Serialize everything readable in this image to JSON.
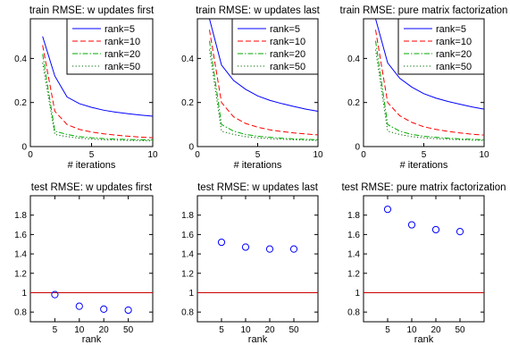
{
  "chart_data": [
    {
      "type": "line",
      "title": "train RMSE: w updates first",
      "xlabel": "# iterations",
      "ylabel": "",
      "xlim": [
        0,
        10
      ],
      "ylim": [
        0,
        0.58
      ],
      "xticks": [
        0,
        5,
        10
      ],
      "yticks": [
        0,
        0.2,
        0.4
      ],
      "x": [
        1,
        2,
        3,
        4,
        5,
        6,
        7,
        8,
        9,
        10
      ],
      "legend": "top-right",
      "series": [
        {
          "name": "rank=5",
          "style": "solid",
          "color": "#0000ff",
          "values": [
            0.5,
            0.32,
            0.225,
            0.195,
            0.178,
            0.165,
            0.156,
            0.149,
            0.143,
            0.138
          ]
        },
        {
          "name": "rank=10",
          "style": "dashed",
          "color": "#ff0000",
          "values": [
            0.46,
            0.16,
            0.1,
            0.078,
            0.066,
            0.058,
            0.052,
            0.047,
            0.043,
            0.04
          ]
        },
        {
          "name": "rank=20",
          "style": "dashdot",
          "color": "#00aa00",
          "values": [
            0.42,
            0.07,
            0.055,
            0.045,
            0.04,
            0.036,
            0.034,
            0.032,
            0.031,
            0.03
          ]
        },
        {
          "name": "rank=50",
          "style": "dotted",
          "color": "#006400",
          "values": [
            0.38,
            0.055,
            0.045,
            0.038,
            0.034,
            0.031,
            0.029,
            0.028,
            0.027,
            0.026
          ]
        }
      ]
    },
    {
      "type": "line",
      "title": "train RMSE: w updates last",
      "xlabel": "# iterations",
      "ylabel": "",
      "xlim": [
        0,
        10
      ],
      "ylim": [
        0,
        0.58
      ],
      "xticks": [
        0,
        5,
        10
      ],
      "yticks": [
        0,
        0.2,
        0.4
      ],
      "x": [
        1,
        2,
        3,
        4,
        5,
        6,
        7,
        8,
        9,
        10
      ],
      "legend": "top-right",
      "series": [
        {
          "name": "rank=5",
          "style": "solid",
          "color": "#0000ff",
          "values": [
            0.58,
            0.37,
            0.3,
            0.26,
            0.23,
            0.21,
            0.195,
            0.182,
            0.17,
            0.16
          ]
        },
        {
          "name": "rank=10",
          "style": "dashed",
          "color": "#ff0000",
          "values": [
            0.53,
            0.2,
            0.135,
            0.105,
            0.088,
            0.076,
            0.068,
            0.062,
            0.057,
            0.053
          ]
        },
        {
          "name": "rank=20",
          "style": "dashdot",
          "color": "#00aa00",
          "values": [
            0.48,
            0.1,
            0.07,
            0.055,
            0.047,
            0.042,
            0.038,
            0.035,
            0.033,
            0.031
          ]
        },
        {
          "name": "rank=50",
          "style": "dotted",
          "color": "#006400",
          "values": [
            0.44,
            0.07,
            0.055,
            0.045,
            0.04,
            0.036,
            0.033,
            0.031,
            0.029,
            0.028
          ]
        }
      ]
    },
    {
      "type": "line",
      "title": "train RMSE: pure matrix factorization",
      "xlabel": "# iterations",
      "ylabel": "",
      "xlim": [
        0,
        10
      ],
      "ylim": [
        0,
        0.58
      ],
      "xticks": [
        0,
        5,
        10
      ],
      "yticks": [
        0,
        0.2,
        0.4
      ],
      "x": [
        1,
        2,
        3,
        4,
        5,
        6,
        7,
        8,
        9,
        10
      ],
      "legend": "top-right",
      "series": [
        {
          "name": "rank=5",
          "style": "solid",
          "color": "#0000ff",
          "values": [
            0.58,
            0.38,
            0.31,
            0.27,
            0.24,
            0.22,
            0.205,
            0.192,
            0.18,
            0.17
          ]
        },
        {
          "name": "rank=10",
          "style": "dashed",
          "color": "#ff0000",
          "values": [
            0.53,
            0.2,
            0.14,
            0.11,
            0.09,
            0.078,
            0.069,
            0.062,
            0.056,
            0.052
          ]
        },
        {
          "name": "rank=20",
          "style": "dashdot",
          "color": "#00aa00",
          "values": [
            0.48,
            0.1,
            0.07,
            0.055,
            0.047,
            0.042,
            0.038,
            0.035,
            0.033,
            0.031
          ]
        },
        {
          "name": "rank=50",
          "style": "dotted",
          "color": "#006400",
          "values": [
            0.44,
            0.07,
            0.055,
            0.045,
            0.04,
            0.036,
            0.033,
            0.031,
            0.029,
            0.028
          ]
        }
      ]
    },
    {
      "type": "scatter",
      "title": "test RMSE: w updates first",
      "xlabel": "rank",
      "ylabel": "",
      "categories": [
        "5",
        "10",
        "20",
        "50"
      ],
      "ylim": [
        0.7,
        2.0
      ],
      "yticks": [
        0.8,
        1,
        1.2,
        1.4,
        1.6,
        1.8
      ],
      "values": [
        0.98,
        0.86,
        0.83,
        0.82
      ],
      "reference_line": 1.0,
      "marker_color": "#0000ff",
      "line_color": "#cc0000"
    },
    {
      "type": "scatter",
      "title": "test RMSE: w updates last",
      "xlabel": "rank",
      "ylabel": "",
      "categories": [
        "5",
        "10",
        "20",
        "50"
      ],
      "ylim": [
        0.7,
        2.0
      ],
      "yticks": [
        0.8,
        1,
        1.2,
        1.4,
        1.6,
        1.8
      ],
      "values": [
        1.52,
        1.47,
        1.45,
        1.45
      ],
      "reference_line": 1.0,
      "marker_color": "#0000ff",
      "line_color": "#cc0000"
    },
    {
      "type": "scatter",
      "title": "test RMSE: pure matrix factorization",
      "xlabel": "rank",
      "ylabel": "",
      "categories": [
        "5",
        "10",
        "20",
        "50"
      ],
      "ylim": [
        0.7,
        2.0
      ],
      "yticks": [
        0.8,
        1,
        1.2,
        1.4,
        1.6,
        1.8
      ],
      "values": [
        1.86,
        1.7,
        1.65,
        1.63
      ],
      "reference_line": 1.0,
      "marker_color": "#0000ff",
      "line_color": "#cc0000"
    }
  ]
}
